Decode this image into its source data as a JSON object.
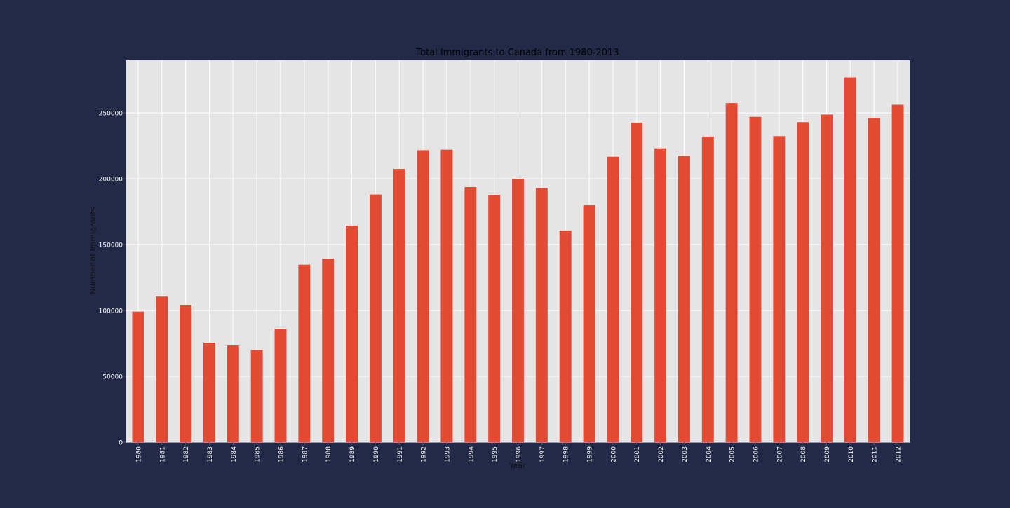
{
  "colors": {
    "page_background": "#232a48",
    "plot_background": "#e5e5e5",
    "grid": "#ffffff",
    "bar": "#e24a33",
    "title_text": "#000000",
    "axis_label_text": "#111111",
    "tick_text": "#ffffff"
  },
  "chart_data": {
    "type": "bar",
    "title": "Total Immigrants to Canada from 1980-2013",
    "xlabel": "Year",
    "ylabel": "Number of Immigrants",
    "categories": [
      "1980",
      "1981",
      "1982",
      "1983",
      "1984",
      "1985",
      "1986",
      "1987",
      "1988",
      "1989",
      "1990",
      "1991",
      "1992",
      "1993",
      "1994",
      "1995",
      "1996",
      "1997",
      "1998",
      "1999",
      "2000",
      "2001",
      "2002",
      "2003",
      "2004",
      "2005",
      "2006",
      "2007",
      "2008",
      "2009",
      "2010",
      "2011",
      "2012"
    ],
    "values": [
      99137,
      110563,
      104271,
      75550,
      73417,
      69978,
      86048,
      134771,
      139306,
      164432,
      188054,
      207509,
      221687,
      222049,
      193665,
      187712,
      200085,
      192885,
      160727,
      179818,
      216712,
      242658,
      223111,
      217297,
      232083,
      257457,
      247057,
      232405,
      243047,
      248768,
      276956,
      246194,
      256222
    ],
    "ylim": [
      0,
      290000
    ],
    "yticks": [
      0,
      50000,
      100000,
      150000,
      200000,
      250000
    ],
    "ytick_labels": [
      "0",
      "50000",
      "100000",
      "150000",
      "200000",
      "250000"
    ],
    "grid": true,
    "legend": "none"
  }
}
